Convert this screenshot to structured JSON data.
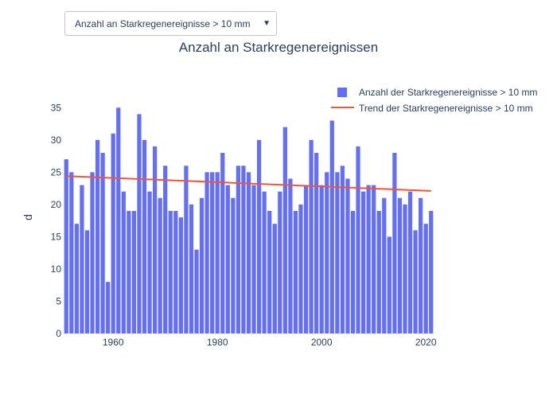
{
  "dropdown": {
    "selected": "Anzahl an Starkregenereignisse > 10 mm",
    "arrow": "▼"
  },
  "chart_data": {
    "type": "bar",
    "title": "Anzahl an Starkregenereignissen",
    "xlabel": "",
    "ylabel": "d",
    "x": [
      1951,
      1952,
      1953,
      1954,
      1955,
      1956,
      1957,
      1958,
      1959,
      1960,
      1961,
      1962,
      1963,
      1964,
      1965,
      1966,
      1967,
      1968,
      1969,
      1970,
      1971,
      1972,
      1973,
      1974,
      1975,
      1976,
      1977,
      1978,
      1979,
      1980,
      1981,
      1982,
      1983,
      1984,
      1985,
      1986,
      1987,
      1988,
      1989,
      1990,
      1991,
      1992,
      1993,
      1994,
      1995,
      1996,
      1997,
      1998,
      1999,
      2000,
      2001,
      2002,
      2003,
      2004,
      2005,
      2006,
      2007,
      2008,
      2009,
      2010,
      2011,
      2012,
      2013,
      2014,
      2015,
      2016,
      2017,
      2018,
      2019,
      2020,
      2021
    ],
    "series": [
      {
        "name": "Anzahl der Starkregenereignisse > 10 mm",
        "type": "bar",
        "color": "#636efa",
        "values": [
          27,
          25,
          17,
          23,
          16,
          25,
          30,
          28,
          8,
          31,
          35,
          22,
          19,
          19,
          34,
          30,
          22,
          29,
          21,
          26,
          19,
          19,
          18,
          26,
          20,
          13,
          21,
          25,
          25,
          25,
          28,
          23,
          21,
          26,
          26,
          25,
          23,
          30,
          22,
          19,
          17,
          22,
          32,
          24,
          19,
          20,
          23,
          30,
          28,
          23,
          25,
          33,
          25,
          26,
          24,
          19,
          29,
          22,
          23,
          23,
          19,
          21,
          15,
          28,
          21,
          20,
          22,
          16,
          21,
          17,
          19
        ]
      },
      {
        "name": "Trend der Starkregenereignisse > 10 mm",
        "type": "line",
        "color": "#ef553b",
        "x": [
          1951,
          2021
        ],
        "values": [
          24.4,
          22.1
        ]
      }
    ],
    "xlim": [
      1950.5,
      2021.5
    ],
    "ylim": [
      0,
      37.5
    ],
    "xticks": [
      1960,
      1980,
      2000,
      2020
    ],
    "xtick_labels": [
      "1960",
      "1980",
      "2000",
      "2020"
    ],
    "yticks": [
      0,
      5,
      10,
      15,
      20,
      25,
      30,
      35
    ],
    "ytick_labels": [
      "0",
      "5",
      "10",
      "15",
      "20",
      "25",
      "30",
      "35"
    ],
    "grid": false,
    "legend_position": "top-right"
  }
}
